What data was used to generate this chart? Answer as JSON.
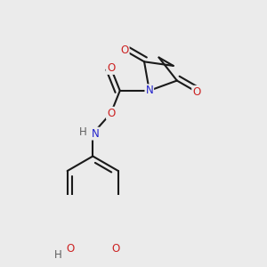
{
  "background_color": "#ebebeb",
  "bond_color": "#1a1a1a",
  "bond_width": 1.5,
  "atom_colors": {
    "C": "#1a1a1a",
    "N": "#2222cc",
    "O": "#cc2222",
    "H": "#606060"
  },
  "font_size": 8.5,
  "fig_size": [
    3.0,
    3.0
  ],
  "dpi": 100
}
